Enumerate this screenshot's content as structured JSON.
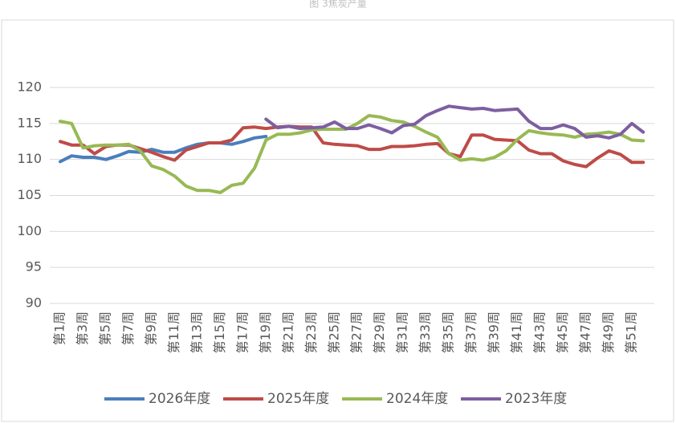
{
  "chart_data": {
    "type": "line",
    "title": "图 3焦炭产量",
    "categories": [
      "第1周",
      null,
      "第3周",
      null,
      "第5周",
      null,
      "第7周",
      null,
      "第9周",
      null,
      "第11周",
      null,
      "第13周",
      null,
      "第15周",
      null,
      "第17周",
      null,
      "第19周",
      null,
      "第21周",
      null,
      "第23周",
      null,
      "第25周",
      null,
      "第27周",
      null,
      "第29周",
      null,
      "第31周",
      null,
      "第33周",
      null,
      "第35周",
      null,
      "第37周",
      null,
      "第39周",
      null,
      "第41周",
      null,
      "第43周",
      null,
      "第45周",
      null,
      "第47周",
      null,
      "第49周",
      null,
      "第51周",
      null
    ],
    "series": [
      {
        "name": "2026年度",
        "color": "#4a7ebb",
        "values": [
          109.7,
          110.5,
          110.3,
          110.3,
          110.0,
          110.5,
          111.1,
          111.0,
          111.4,
          111.0,
          111.0,
          111.6,
          112.1,
          112.3,
          112.3,
          112.1,
          112.5,
          113.0,
          113.2,
          null,
          null,
          null,
          null,
          null,
          null,
          null,
          null,
          null,
          null,
          null,
          null,
          null,
          null,
          null,
          null,
          null,
          null,
          null,
          null,
          null,
          null,
          null,
          null,
          null,
          null,
          null,
          null,
          null,
          null,
          null,
          null,
          null
        ]
      },
      {
        "name": "2025年度",
        "color": "#be4b48",
        "values": [
          112.5,
          112.0,
          112.0,
          110.8,
          111.8,
          112.0,
          112.0,
          111.5,
          111.0,
          110.4,
          109.9,
          111.3,
          111.8,
          112.3,
          112.3,
          112.7,
          114.4,
          114.5,
          114.3,
          114.5,
          114.6,
          114.5,
          114.5,
          112.3,
          112.1,
          112.0,
          111.9,
          111.4,
          111.4,
          111.8,
          111.8,
          111.9,
          112.1,
          112.2,
          110.8,
          110.4,
          113.4,
          113.4,
          112.8,
          112.7,
          112.6,
          111.3,
          110.8,
          110.8,
          109.8,
          109.3,
          109.0,
          110.2,
          111.2,
          110.7,
          109.6,
          109.6
        ]
      },
      {
        "name": "2024年度",
        "color": "#98b954",
        "values": [
          115.3,
          115.0,
          111.6,
          111.9,
          112.0,
          112.0,
          112.1,
          111.2,
          109.1,
          108.6,
          107.7,
          106.3,
          105.7,
          105.7,
          105.4,
          106.4,
          106.7,
          108.8,
          112.7,
          113.5,
          113.5,
          113.7,
          114.1,
          114.2,
          114.2,
          114.2,
          115.0,
          116.1,
          115.9,
          115.4,
          115.2,
          114.6,
          113.8,
          113.1,
          110.8,
          109.9,
          110.1,
          109.9,
          110.3,
          111.2,
          112.8,
          114.0,
          113.7,
          113.5,
          113.4,
          113.1,
          113.5,
          113.6,
          113.8,
          113.5,
          112.7,
          112.6
        ]
      },
      {
        "name": "2023年度",
        "color": "#7d5fa0",
        "values": [
          null,
          null,
          null,
          null,
          null,
          null,
          null,
          null,
          null,
          null,
          null,
          null,
          null,
          null,
          null,
          null,
          null,
          null,
          115.6,
          114.4,
          114.6,
          114.3,
          114.4,
          114.5,
          115.2,
          114.3,
          114.3,
          114.8,
          114.3,
          113.7,
          114.7,
          114.9,
          116.1,
          116.8,
          117.4,
          117.2,
          117.0,
          117.1,
          116.8,
          116.9,
          117.0,
          115.3,
          114.3,
          114.3,
          114.8,
          114.3,
          113.1,
          113.3,
          113.0,
          113.5,
          115.0,
          113.8
        ]
      }
    ],
    "ylim": [
      90,
      120
    ],
    "yticks": [
      90,
      95,
      100,
      105,
      110,
      115,
      120
    ],
    "grid": true
  }
}
